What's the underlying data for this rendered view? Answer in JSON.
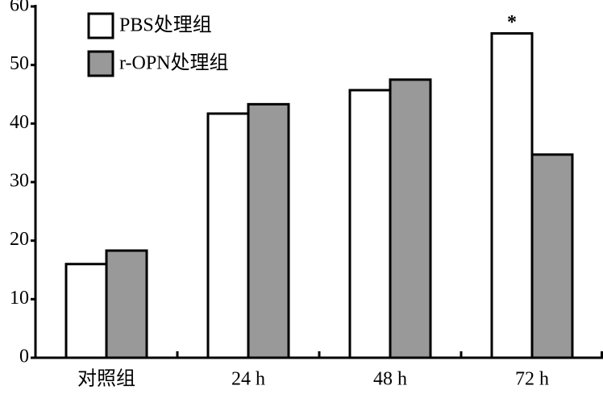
{
  "chart_data": {
    "type": "bar",
    "categories": [
      "对照组",
      "24 h",
      "48 h",
      "72 h"
    ],
    "series": [
      {
        "name": "PBS处理组",
        "color": "#ffffff",
        "values": [
          16,
          41.7,
          45.7,
          55.4
        ]
      },
      {
        "name": "r-OPN处理组",
        "color": "#999999",
        "values": [
          18.3,
          43.3,
          47.5,
          34.7
        ]
      }
    ],
    "annotations": [
      {
        "text": "*",
        "series": "PBS处理组",
        "category": "72 h"
      }
    ],
    "ylim": [
      0,
      60
    ],
    "yticks": [
      0,
      10,
      20,
      30,
      40,
      50,
      60
    ],
    "grid": false
  }
}
